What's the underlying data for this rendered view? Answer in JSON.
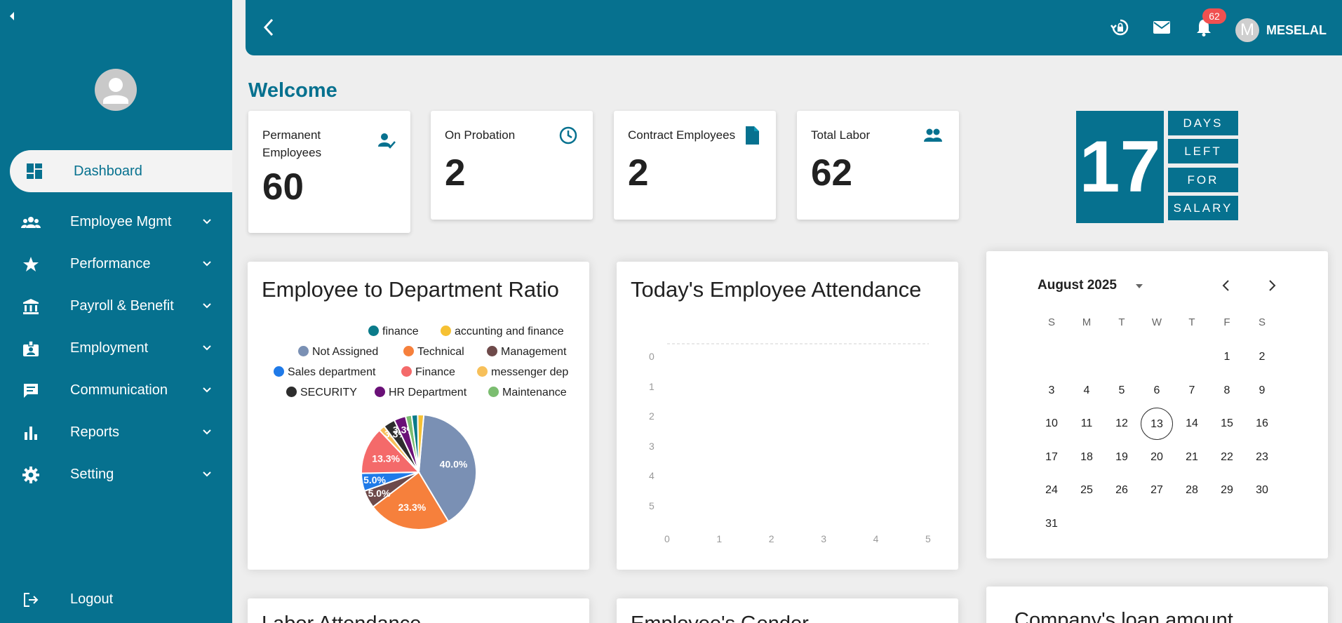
{
  "sidebar": {
    "active": {
      "label": "Dashboard"
    },
    "items": [
      {
        "label": "Employee Mgmt",
        "icon": "people-icon"
      },
      {
        "label": "Performance",
        "icon": "star-icon"
      },
      {
        "label": "Payroll & Benefit",
        "icon": "bank-icon"
      },
      {
        "label": "Employment",
        "icon": "id-badge-icon"
      },
      {
        "label": "Communication",
        "icon": "chat-icon"
      },
      {
        "label": "Reports",
        "icon": "bar-chart-icon"
      },
      {
        "label": "Setting",
        "icon": "gear-icon"
      }
    ],
    "logout": "Logout"
  },
  "header": {
    "badge_count": "62",
    "user_initial": "M",
    "user_name": "MESELAL"
  },
  "welcome": "Welcome",
  "stats": [
    {
      "label": "Permanent Employees",
      "value": "60",
      "icon": "person-check-icon"
    },
    {
      "label": "On Probation",
      "value": "2",
      "icon": "clock-icon"
    },
    {
      "label": "Contract Employees",
      "value": "2",
      "icon": "document-icon"
    },
    {
      "label": "Total Labor",
      "value": "62",
      "icon": "group-icon"
    }
  ],
  "salary": {
    "days": "17",
    "words": [
      "DAYS",
      "LEFT",
      "FOR",
      "SALARY"
    ]
  },
  "dept_panel": {
    "title": "Employee to Department Ratio"
  },
  "attendance_panel": {
    "title": "Today's Employee Attendance"
  },
  "colors": {
    "brand": "#06718f",
    "badge": "#f05050"
  },
  "chart_data": [
    {
      "type": "pie",
      "title": "Employee to Department Ratio",
      "legend_position": "top-right",
      "labels": [
        "finance",
        "accunting and finance",
        "Not Assigned",
        "Technical",
        "Management",
        "Sales department",
        "Finance",
        "messenger dep",
        "SECURITY",
        "HR Department",
        "Maintenance"
      ],
      "colors": [
        "#0a7b8a",
        "#f6c133",
        "#7a90b4",
        "#f6803c",
        "#6e4a4a",
        "#1f7ae8",
        "#f46a6a",
        "#f7c05a",
        "#2d2d2d",
        "#6a1077",
        "#7bbd70"
      ],
      "values": [
        1.7,
        1.7,
        40.0,
        23.3,
        5.0,
        5.0,
        13.3,
        1.7,
        3.3,
        3.3,
        1.7
      ],
      "data_labels": [
        "",
        "",
        "40.0%",
        "23.3%",
        "5.0%",
        "5.0%",
        "13.3%",
        "",
        "3.3%",
        "3.3%",
        ""
      ]
    },
    {
      "type": "line",
      "title": "Today's Employee Attendance",
      "x_ticks": [
        "0",
        "1",
        "2",
        "3",
        "4",
        "5"
      ],
      "y_ticks": [
        "0",
        "1",
        "2",
        "3",
        "4",
        "5"
      ],
      "series": []
    }
  ],
  "calendar": {
    "month_label": "August 2025",
    "dow": [
      "S",
      "M",
      "T",
      "W",
      "T",
      "F",
      "S"
    ],
    "first_weekday": 5,
    "days_in_month": 31,
    "today": 13
  },
  "bottom_panels": [
    "Labor Attendance",
    "Employee's Gender",
    "Company's loan amount"
  ]
}
